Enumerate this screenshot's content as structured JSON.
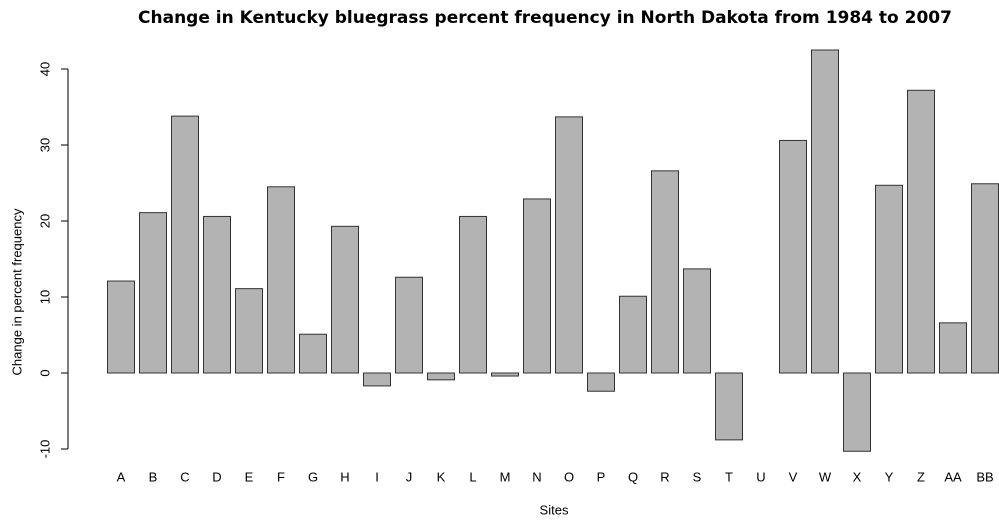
{
  "chart_data": {
    "type": "bar",
    "title": "Change in Kentucky bluegrass percent frequency in North Dakota from 1984 to 2007",
    "x_label": "Sites",
    "y_label": "Change in percent frequency",
    "categories": [
      "A",
      "B",
      "C",
      "D",
      "E",
      "F",
      "G",
      "H",
      "I",
      "J",
      "K",
      "L",
      "M",
      "N",
      "O",
      "P",
      "Q",
      "R",
      "S",
      "T",
      "U",
      "V",
      "W",
      "X",
      "Y",
      "Z",
      "AA",
      "BB"
    ],
    "values": [
      12.1,
      21.1,
      33.8,
      20.6,
      11.1,
      24.5,
      5.1,
      19.3,
      -1.7,
      12.6,
      -0.9,
      20.6,
      -0.4,
      22.9,
      33.7,
      -2.4,
      10.1,
      26.6,
      13.7,
      -8.8,
      0,
      30.6,
      42.5,
      -10.3,
      24.7,
      37.2,
      6.6,
      24.9
    ],
    "color": "#b3b3b3",
    "ylim": [
      -11.5,
      43.5
    ],
    "yticks": [
      -10,
      0,
      10,
      20,
      30,
      40
    ],
    "grid": false
  }
}
